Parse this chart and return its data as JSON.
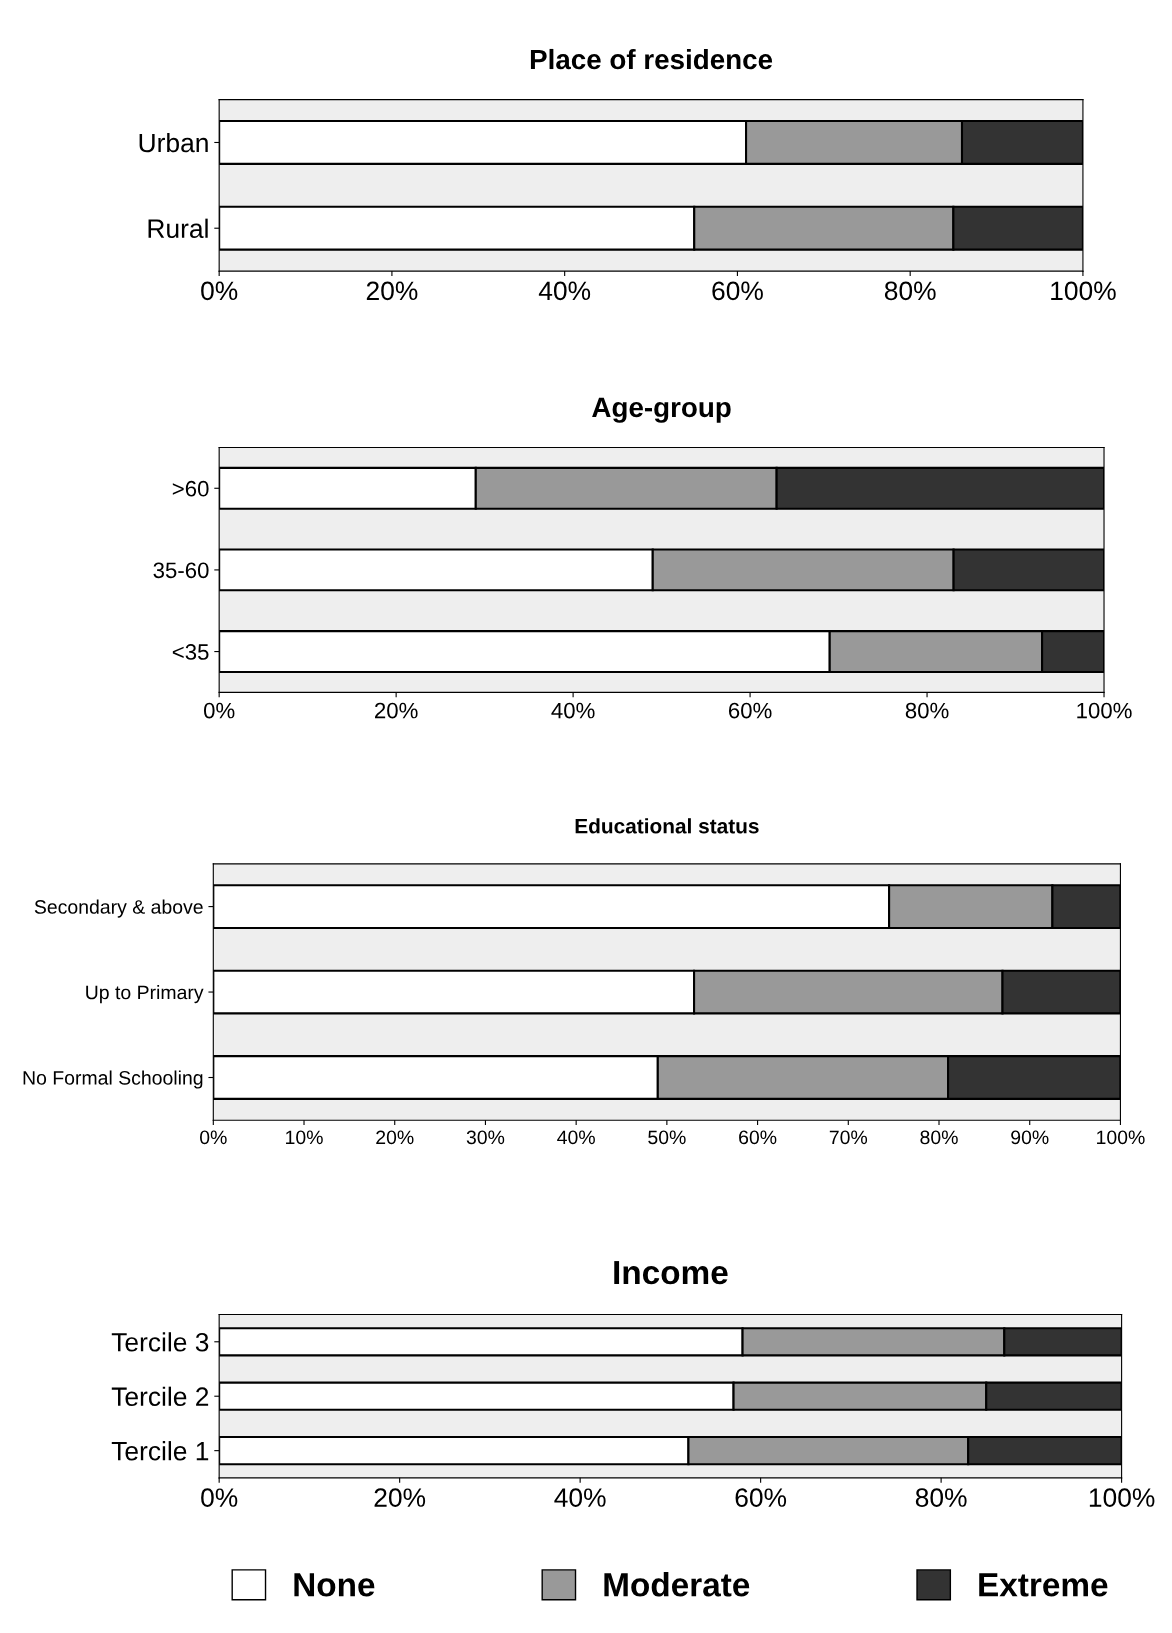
{
  "chart_data": [
    {
      "type": "bar",
      "orientation": "horizontal",
      "stacked": true,
      "title": "Place of residence",
      "categories": [
        "Urban",
        "Rural"
      ],
      "xlim": [
        0,
        100
      ],
      "xticks": [
        {
          "value": 0,
          "label": "0%"
        },
        {
          "value": 20,
          "label": "20%"
        },
        {
          "value": 40,
          "label": "40%"
        },
        {
          "value": 60,
          "label": "60%"
        },
        {
          "value": 80,
          "label": "80%"
        },
        {
          "value": 100,
          "label": "100%"
        }
      ],
      "grid": false,
      "legend": false,
      "series": [
        {
          "color": "#ffffff",
          "values": [
            61,
            55
          ]
        },
        {
          "color": "#999999",
          "values": [
            25,
            30
          ]
        },
        {
          "color": "#333333",
          "values": [
            14,
            15
          ]
        }
      ]
    },
    {
      "type": "bar",
      "orientation": "horizontal",
      "stacked": true,
      "title": "Age-group",
      "categories": [
        ">60",
        "35-60",
        "<35"
      ],
      "xlim": [
        0,
        100
      ],
      "xticks": [
        {
          "value": 0,
          "label": "0%"
        },
        {
          "value": 20,
          "label": "20%"
        },
        {
          "value": 40,
          "label": "40%"
        },
        {
          "value": 60,
          "label": "60%"
        },
        {
          "value": 80,
          "label": "80%"
        },
        {
          "value": 100,
          "label": "100%"
        }
      ],
      "grid": false,
      "legend": false,
      "series": [
        {
          "color": "#ffffff",
          "values": [
            29,
            49,
            69
          ]
        },
        {
          "color": "#999999",
          "values": [
            34,
            34,
            24
          ]
        },
        {
          "color": "#333333",
          "values": [
            37,
            17,
            7
          ]
        }
      ]
    },
    {
      "type": "bar",
      "orientation": "horizontal",
      "stacked": true,
      "title": "Educational status",
      "categories": [
        "Secondary & above",
        "Up to Primary",
        "No Formal Schooling"
      ],
      "xlim": [
        0,
        100
      ],
      "xticks": [
        {
          "value": 0,
          "label": "0%"
        },
        {
          "value": 10,
          "label": "10%"
        },
        {
          "value": 20,
          "label": "20%"
        },
        {
          "value": 30,
          "label": "30%"
        },
        {
          "value": 40,
          "label": "40%"
        },
        {
          "value": 50,
          "label": "50%"
        },
        {
          "value": 60,
          "label": "60%"
        },
        {
          "value": 70,
          "label": "70%"
        },
        {
          "value": 80,
          "label": "80%"
        },
        {
          "value": 90,
          "label": "90%"
        },
        {
          "value": 100,
          "label": "100%"
        }
      ],
      "grid": false,
      "legend": false,
      "series": [
        {
          "color": "#ffffff",
          "values": [
            74.5,
            53,
            49
          ]
        },
        {
          "color": "#999999",
          "values": [
            18,
            34,
            32
          ]
        },
        {
          "color": "#333333",
          "values": [
            7.5,
            13,
            19
          ]
        }
      ]
    },
    {
      "type": "bar",
      "orientation": "horizontal",
      "stacked": true,
      "title": "Income",
      "categories": [
        "Tercile 3",
        "Tercile 2",
        "Tercile 1"
      ],
      "xlim": [
        0,
        100
      ],
      "xticks": [
        {
          "value": 0,
          "label": "0%"
        },
        {
          "value": 20,
          "label": "20%"
        },
        {
          "value": 40,
          "label": "40%"
        },
        {
          "value": 60,
          "label": "60%"
        },
        {
          "value": 80,
          "label": "80%"
        },
        {
          "value": 100,
          "label": "100%"
        }
      ],
      "grid": false,
      "legend": "bottom",
      "series": [
        {
          "name": "None",
          "color": "#ffffff",
          "values": [
            58,
            57,
            52
          ]
        },
        {
          "name": "Moderate",
          "color": "#999999",
          "values": [
            29,
            28,
            31
          ]
        },
        {
          "name": "Extreme",
          "color": "#333333",
          "values": [
            13,
            15,
            17
          ]
        }
      ]
    }
  ]
}
